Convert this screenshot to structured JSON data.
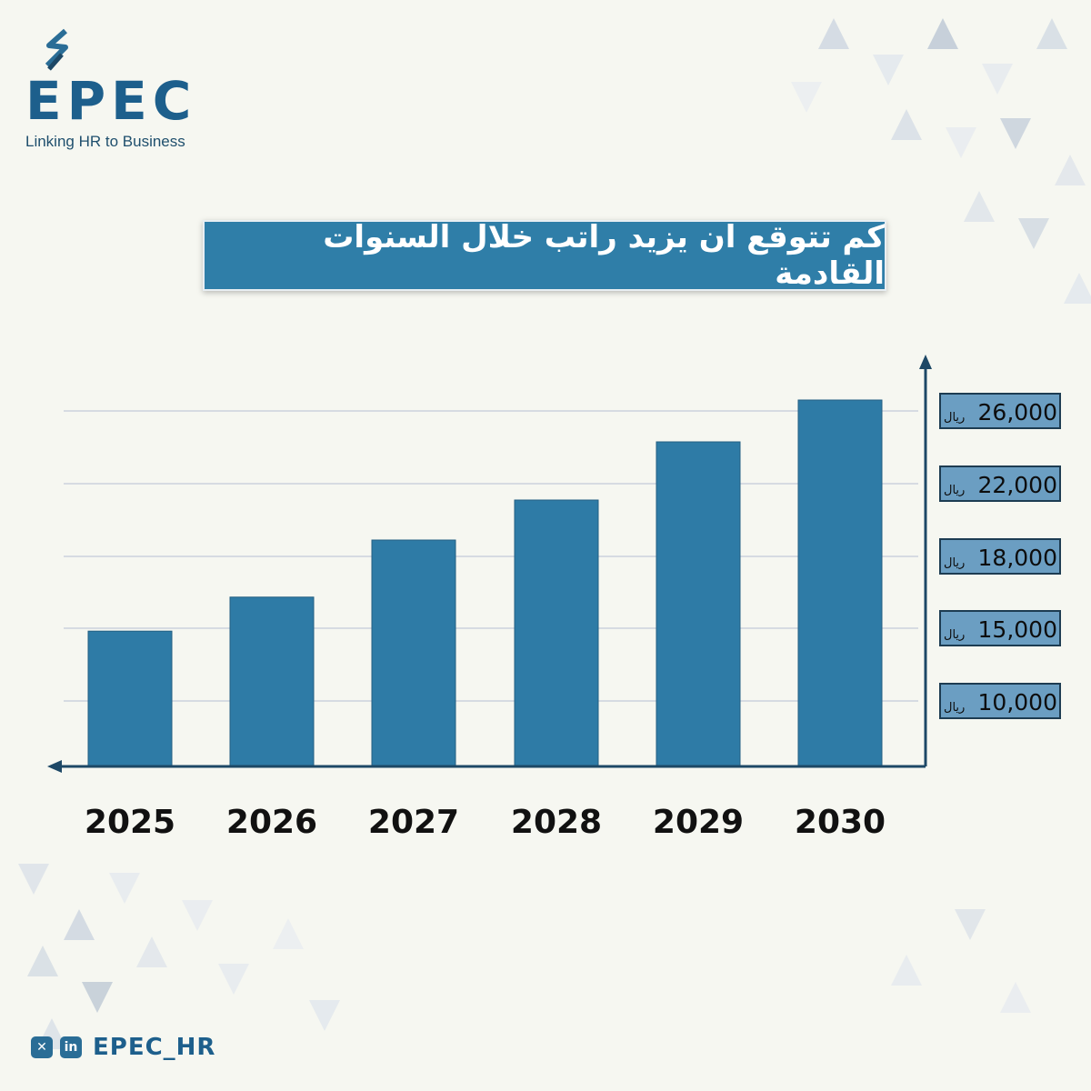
{
  "brand": {
    "name": "EPEC",
    "tagline": "Linking HR to Business"
  },
  "title": "كم تتوقع ان يزيد راتب خلال السنوات القادمة",
  "footer": {
    "handle": "EPEC_HR",
    "icons": [
      "x-icon",
      "linkedin-icon"
    ]
  },
  "colors": {
    "bar": "#2e7ba6",
    "title_bg": "#2f7ea8",
    "axis": "#1d4866",
    "label_bg": "#6b9ec2"
  },
  "chart_data": {
    "type": "bar",
    "categories": [
      "2025",
      "2026",
      "2027",
      "2028",
      "2029",
      "2030"
    ],
    "values": [
      14800,
      16300,
      18900,
      21100,
      24300,
      26600
    ],
    "ytick_values": [
      10000,
      15000,
      18000,
      22000,
      26000
    ],
    "ytick_labels": [
      "10,000",
      "15,000",
      "18,000",
      "22,000",
      "26,000"
    ],
    "currency": "ريال",
    "title": "كم تتوقع ان يزيد راتب خلال السنوات القادمة",
    "xlabel": "",
    "ylabel": "",
    "grid": true
  }
}
